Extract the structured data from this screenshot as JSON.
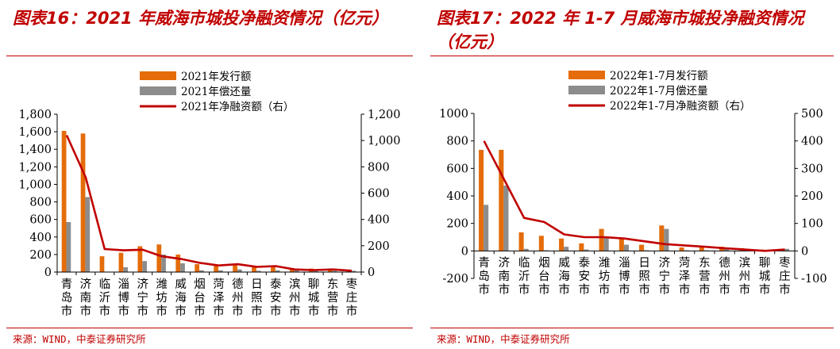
{
  "panels": [
    {
      "title": "图表16：2021 年威海市城投净融资情况（亿元）",
      "source": "来源：WIND，中泰证券研究所"
    },
    {
      "title": "图表17：2022 年 1-7 月威海市城投净融资情况（亿元）",
      "source": "来源：WIND，中泰证券研究所"
    }
  ],
  "chart_data": [
    {
      "type": "bar",
      "categories": [
        "青岛市",
        "济南市",
        "临沂市",
        "淄博市",
        "济宁市",
        "潍坊市",
        "威海市",
        "烟台市",
        "菏泽市",
        "德州市",
        "日照市",
        "泰安市",
        "滨州市",
        "聊城市",
        "东营市",
        "枣庄市"
      ],
      "series": [
        {
          "name": "2021年发行额",
          "type": "bar",
          "axis": "left",
          "color": "#e46c0a",
          "values": [
            1610,
            1580,
            180,
            220,
            295,
            315,
            200,
            90,
            70,
            90,
            55,
            65,
            45,
            40,
            35,
            25
          ]
        },
        {
          "name": "2021年偿还量",
          "type": "bar",
          "axis": "left",
          "color": "#8c8c8c",
          "values": [
            570,
            855,
            5,
            55,
            125,
            200,
            100,
            20,
            20,
            30,
            15,
            20,
            25,
            25,
            15,
            15
          ]
        },
        {
          "name": "2021年净融资额（右）",
          "type": "line",
          "axis": "right",
          "color": "#c00000",
          "values": [
            1040,
            720,
            175,
            165,
            170,
            120,
            100,
            70,
            50,
            60,
            40,
            45,
            20,
            15,
            20,
            10
          ]
        }
      ],
      "y_left": {
        "min": 0,
        "max": 1800,
        "ticks": [
          0,
          200,
          400,
          600,
          800,
          1000,
          1200,
          1400,
          1600,
          1800
        ],
        "tick_labels": [
          "0",
          "200",
          "400",
          "600",
          "800",
          "1,000",
          "1,200",
          "1,400",
          "1,600",
          "1,800"
        ]
      },
      "y_right": {
        "min": 0,
        "max": 1200,
        "ticks": [
          0,
          200,
          400,
          600,
          800,
          1000,
          1200
        ],
        "tick_labels": [
          "0",
          "200",
          "400",
          "600",
          "800",
          "1,000",
          "1,200"
        ]
      },
      "legend": "top-center",
      "grid": false
    },
    {
      "type": "bar",
      "categories": [
        "青岛市",
        "济南市",
        "临沂市",
        "烟台市",
        "威海市",
        "泰安市",
        "潍坊市",
        "淄博市",
        "日照市",
        "济宁市",
        "菏泽市",
        "东营市",
        "德州市",
        "滨州市",
        "聊城市",
        "枣庄市"
      ],
      "series": [
        {
          "name": "2022年1-7月发行额",
          "type": "bar",
          "axis": "left",
          "color": "#e46c0a",
          "values": [
            735,
            735,
            135,
            110,
            90,
            55,
            160,
            90,
            45,
            185,
            25,
            25,
            30,
            20,
            10,
            10
          ]
        },
        {
          "name": "2022年1-7月偿还量",
          "type": "bar",
          "axis": "left",
          "color": "#8c8c8c",
          "values": [
            335,
            475,
            15,
            5,
            30,
            10,
            105,
            45,
            5,
            160,
            5,
            5,
            20,
            10,
            5,
            15
          ]
        },
        {
          "name": "2022年1-7月净融资额（右）",
          "type": "line",
          "axis": "right",
          "color": "#c00000",
          "values": [
            400,
            260,
            120,
            105,
            60,
            50,
            50,
            45,
            35,
            25,
            20,
            15,
            10,
            5,
            0,
            5
          ]
        }
      ],
      "y_left": {
        "min": -200,
        "max": 1000,
        "ticks": [
          -200,
          0,
          200,
          400,
          600,
          800,
          1000
        ],
        "tick_labels": [
          "-200",
          "0",
          "200",
          "400",
          "600",
          "800",
          "1000"
        ]
      },
      "y_right": {
        "min": -100,
        "max": 500,
        "ticks": [
          -100,
          0,
          100,
          200,
          300,
          400,
          500
        ],
        "tick_labels": [
          "-100",
          "0",
          "100",
          "200",
          "300",
          "400",
          "500"
        ]
      },
      "legend": "top-center",
      "grid": false
    }
  ]
}
